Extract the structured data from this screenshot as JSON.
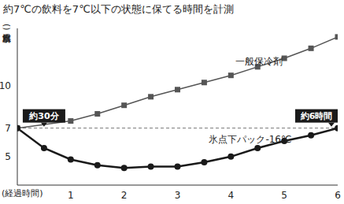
{
  "chart_data": {
    "type": "line",
    "title": "約7℃の飲料を7℃以下の状態に保てる時間を計測",
    "x_label": "(経過時間)",
    "y_label": "(飲料水温度)",
    "x": [
      0,
      0.5,
      1,
      1.5,
      2,
      2.5,
      3,
      3.5,
      4,
      4.5,
      5,
      5.5,
      6
    ],
    "series": [
      {
        "name": "一般保冷剤",
        "color": "#555555",
        "marker": "square",
        "values": [
          7,
          null,
          7.5,
          8.0,
          8.6,
          9.2,
          9.7,
          10.2,
          10.7,
          11.3,
          11.9,
          12.6,
          13.4
        ]
      },
      {
        "name": "氷点下パック-16℃",
        "color": "#1a1a1a",
        "marker": "circle",
        "values": [
          7,
          5.6,
          4.8,
          4.4,
          4.2,
          4.3,
          4.3,
          4.6,
          5.0,
          5.6,
          6.1,
          6.5,
          7
        ]
      }
    ],
    "xlim": [
      0,
      6
    ],
    "xticks": [
      1,
      2,
      3,
      4,
      5,
      6
    ],
    "ylim": [
      3,
      14
    ],
    "yticks": [
      5,
      7,
      10
    ],
    "threshold": 7,
    "annotations": [
      {
        "text": "約30分",
        "x": 0.5
      },
      {
        "text": "約6時間",
        "x": 6
      }
    ],
    "grid": false
  }
}
